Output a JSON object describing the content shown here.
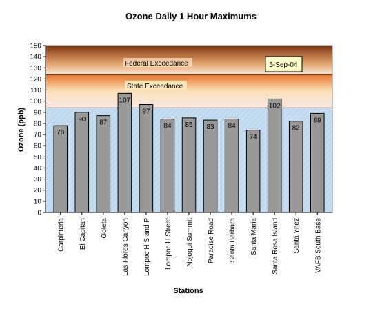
{
  "chart_data": {
    "type": "bar",
    "title": "Ozone Daily 1 Hour Maximums",
    "xlabel": "Stations",
    "ylabel": "Ozone (ppb)",
    "ylim": [
      0,
      150
    ],
    "ytick_step": 10,
    "categories": [
      "Carpinteria",
      "El Capitan",
      "Goleta",
      "Las Flores Canyon",
      "Lompoc H S and P",
      "Lompoc H Street",
      "Nojoqui Summit",
      "Paradise Road",
      "Santa Barbara",
      "Santa Maria",
      "Santa Rosa Island",
      "Santa Ynez",
      "VAFB South Base"
    ],
    "values": [
      78,
      90,
      87,
      107,
      97,
      84,
      85,
      83,
      84,
      74,
      102,
      82,
      89
    ],
    "bar_color": "#999999",
    "bands": [
      {
        "label": "Federal Exceedance",
        "from": 124,
        "to": 150,
        "color_top": "#7a3410",
        "color_bottom": "#f7e6d2"
      },
      {
        "label": "State Exceedance",
        "from": 94,
        "to": 124,
        "color_top": "#e8732a",
        "color_bottom": "#fbe7e3"
      }
    ],
    "date_annotation": "5-Sep-04",
    "grid": false,
    "legend": "none"
  }
}
